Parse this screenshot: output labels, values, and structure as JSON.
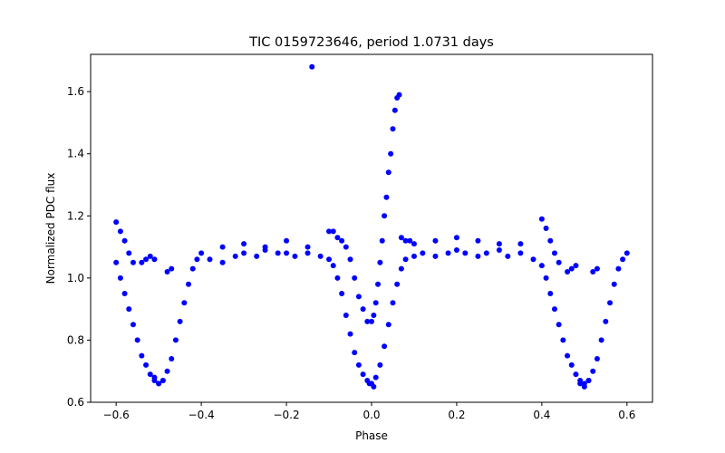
{
  "chart_data": {
    "type": "scatter",
    "title": "TIC 0159723646, period 1.0731 days",
    "xlabel": "Phase",
    "ylabel": "Normalized PDC flux",
    "xlim": [
      -0.66,
      0.66
    ],
    "ylim": [
      0.6,
      1.72
    ],
    "xticks": [
      -0.6,
      -0.4,
      -0.2,
      0.0,
      0.2,
      0.4,
      0.6
    ],
    "xtick_labels": [
      "−0.6",
      "−0.4",
      "−0.2",
      "0.0",
      "0.2",
      "0.4",
      "0.6"
    ],
    "yticks": [
      0.6,
      0.8,
      1.0,
      1.2,
      1.4,
      1.6
    ],
    "ytick_labels": [
      "0.6",
      "0.8",
      "1.0",
      "1.2",
      "1.4",
      "1.6"
    ],
    "grid": false,
    "legend": "none",
    "marker_color": "#0000ff",
    "series": [
      {
        "x": [
          -0.6,
          -0.59,
          -0.58,
          -0.57,
          -0.56,
          -0.55,
          -0.54,
          -0.53,
          -0.52,
          -0.51,
          -0.5,
          -0.49,
          -0.48,
          -0.47,
          -0.46,
          -0.45,
          -0.44,
          -0.43,
          -0.42,
          -0.41,
          -0.4,
          -0.38,
          -0.35,
          -0.32,
          -0.3,
          -0.27,
          -0.25,
          -0.22,
          -0.2,
          -0.18,
          -0.15,
          -0.12,
          -0.1,
          -0.09,
          -0.08,
          -0.07,
          -0.06,
          -0.05,
          -0.04,
          -0.03,
          -0.02,
          -0.01,
          0.0,
          0.01,
          0.02,
          0.03,
          0.04,
          0.05,
          0.06,
          0.07,
          0.08,
          0.1,
          0.12,
          0.15,
          0.18,
          0.2,
          0.22,
          0.25,
          0.27,
          0.3,
          0.32,
          0.35,
          0.38,
          0.4,
          0.41,
          0.42,
          0.43,
          0.44,
          0.45,
          0.46,
          0.47,
          0.48,
          0.49,
          0.5,
          0.51,
          0.52,
          0.53,
          0.54,
          0.55,
          0.56,
          0.57,
          0.58,
          0.59,
          0.6,
          -0.6,
          -0.59,
          -0.58,
          -0.57,
          -0.56,
          0.4,
          0.41,
          0.42,
          0.43,
          0.44,
          -0.54,
          -0.53,
          -0.52,
          -0.51,
          -0.48,
          -0.47,
          0.46,
          0.47,
          0.48,
          0.52,
          0.53,
          -0.14,
          0.0,
          0.005,
          0.01,
          0.015,
          0.02,
          0.025,
          0.03,
          0.035,
          0.04,
          0.045,
          0.05,
          0.055,
          0.06,
          0.065,
          0.07,
          0.08,
          0.09,
          -0.1,
          -0.09,
          -0.08,
          -0.07,
          -0.06,
          -0.05,
          -0.04,
          -0.03,
          -0.02,
          -0.01,
          -0.5,
          -0.51,
          -0.49,
          0.5,
          0.49,
          0.51,
          -0.005,
          0.005,
          -0.3,
          -0.15,
          0.1,
          0.25,
          0.35,
          -0.25,
          -0.35,
          0.15,
          0.3,
          -0.2,
          0.2
        ],
        "y": [
          1.05,
          1.0,
          0.95,
          0.9,
          0.85,
          0.8,
          0.75,
          0.72,
          0.69,
          0.67,
          0.66,
          0.67,
          0.7,
          0.74,
          0.8,
          0.86,
          0.92,
          0.98,
          1.03,
          1.06,
          1.08,
          1.06,
          1.05,
          1.07,
          1.08,
          1.07,
          1.09,
          1.08,
          1.08,
          1.07,
          1.08,
          1.07,
          1.06,
          1.04,
          1.0,
          0.95,
          0.88,
          0.82,
          0.76,
          0.72,
          0.69,
          0.67,
          0.66,
          0.68,
          0.72,
          0.78,
          0.85,
          0.92,
          0.98,
          1.03,
          1.06,
          1.07,
          1.08,
          1.07,
          1.08,
          1.09,
          1.08,
          1.07,
          1.08,
          1.09,
          1.07,
          1.08,
          1.06,
          1.04,
          1.0,
          0.95,
          0.9,
          0.85,
          0.8,
          0.75,
          0.72,
          0.69,
          0.67,
          0.66,
          0.67,
          0.7,
          0.74,
          0.8,
          0.86,
          0.92,
          0.98,
          1.03,
          1.06,
          1.08,
          1.18,
          1.15,
          1.12,
          1.08,
          1.05,
          1.19,
          1.16,
          1.12,
          1.08,
          1.05,
          1.05,
          1.06,
          1.07,
          1.06,
          1.02,
          1.03,
          1.02,
          1.03,
          1.04,
          1.02,
          1.03,
          1.68,
          0.86,
          0.88,
          0.92,
          0.98,
          1.05,
          1.12,
          1.2,
          1.26,
          1.34,
          1.4,
          1.48,
          1.54,
          1.58,
          1.59,
          1.13,
          1.12,
          1.12,
          1.15,
          1.15,
          1.13,
          1.12,
          1.1,
          1.06,
          1.0,
          0.94,
          0.9,
          0.86,
          0.66,
          0.68,
          0.67,
          0.65,
          0.66,
          0.67,
          0.66,
          0.65,
          1.11,
          1.1,
          1.11,
          1.12,
          1.11,
          1.1,
          1.1,
          1.12,
          1.11,
          1.12,
          1.13
        ]
      }
    ]
  }
}
